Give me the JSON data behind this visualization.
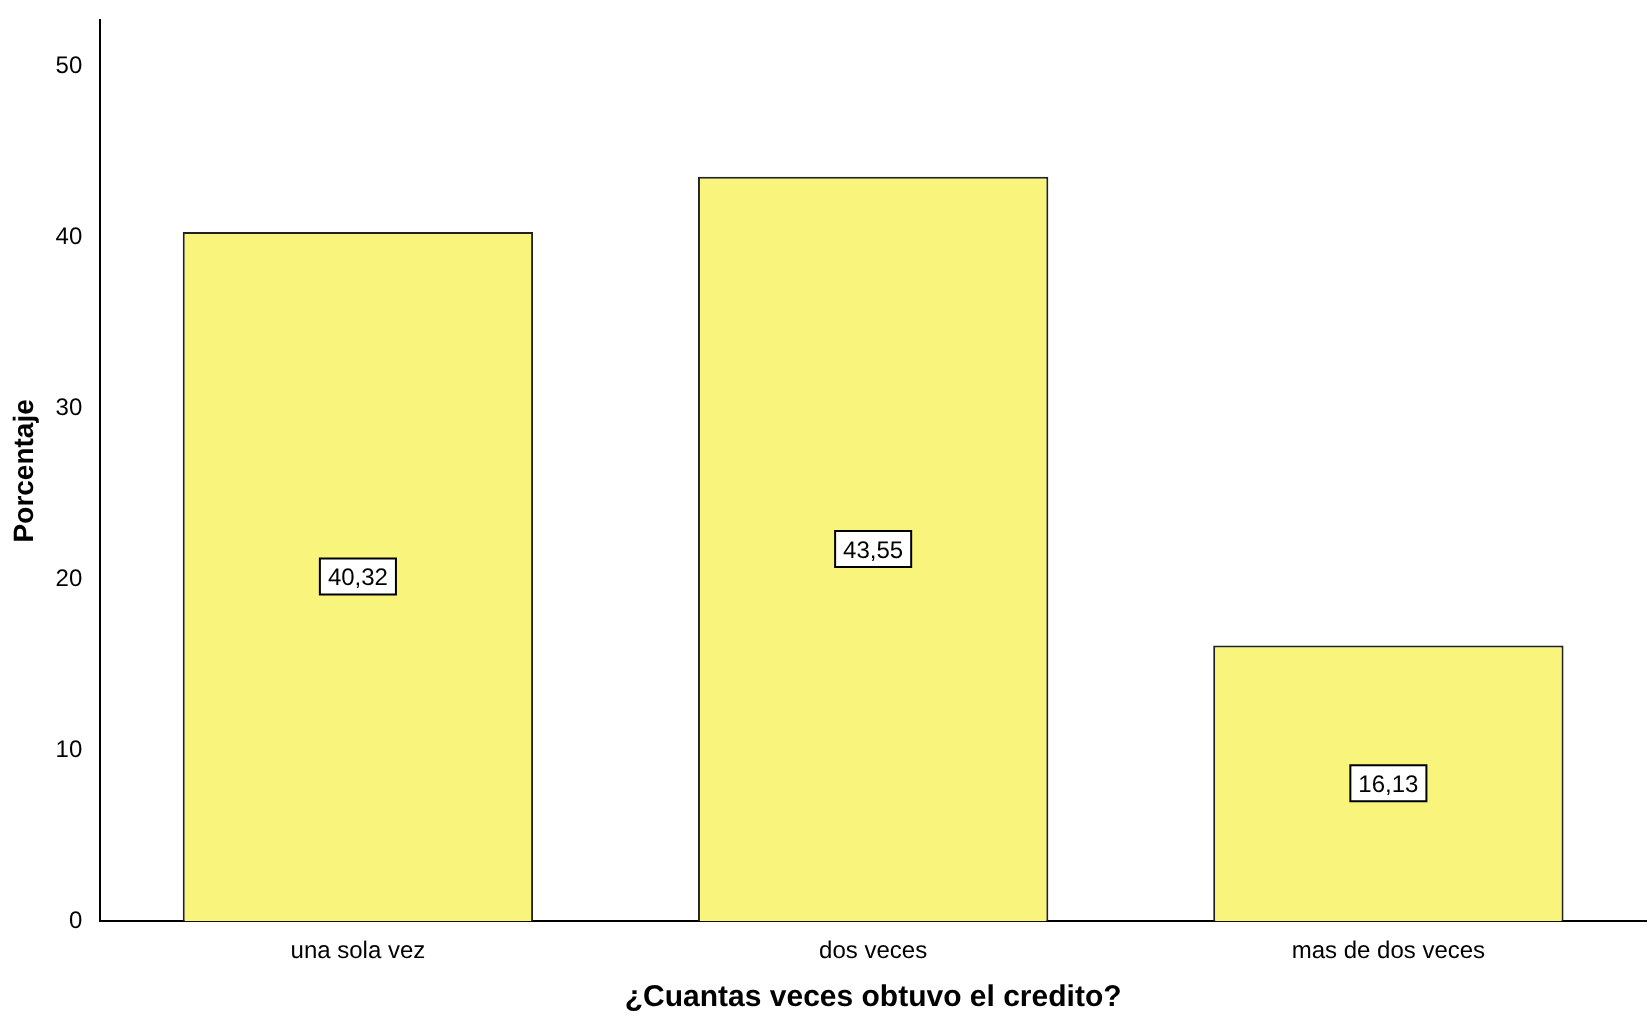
{
  "chart_data": {
    "type": "bar",
    "xlabel": "¿Cuantas veces obtuvo el credito?",
    "ylabel": "Porcentaje",
    "categories": [
      "una sola vez",
      "dos veces",
      "mas de dos veces"
    ],
    "values": [
      40.32,
      43.55,
      16.13
    ],
    "value_labels": [
      "40,32",
      "43,55",
      "16,13"
    ],
    "color": "#f8f47c",
    "ylim": [
      0,
      52.7
    ],
    "yticks": [
      0,
      10,
      20,
      30,
      40,
      50
    ],
    "grid": false,
    "legend": false
  }
}
